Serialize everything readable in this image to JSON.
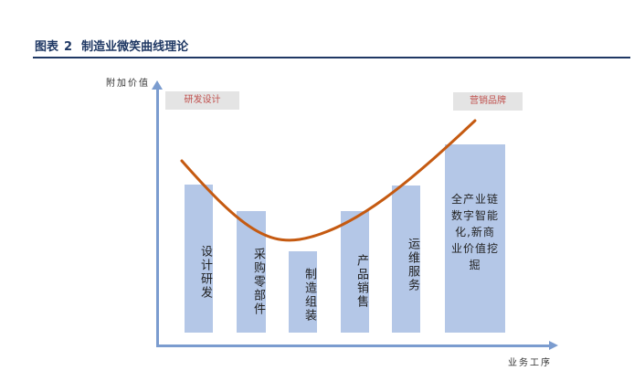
{
  "figure": {
    "label": "图表",
    "number": "2",
    "title": "制造业微笑曲线理论"
  },
  "axes": {
    "y_label": "附加价值",
    "x_label": "业务工序"
  },
  "tags": {
    "left": "研发设计",
    "right": "营销品牌"
  },
  "bars": [
    {
      "label": "设计研发",
      "value": 0.64
    },
    {
      "label": "采购零部件",
      "value": 0.52
    },
    {
      "label": "制造组装",
      "value": 0.34
    },
    {
      "label": "产品销售",
      "value": 0.51
    },
    {
      "label": "运维服务",
      "value": 0.64
    },
    {
      "label": "全产业链数字智能化,新商业价值挖掘",
      "value": 0.77
    }
  ],
  "colors": {
    "bar": "#b4c7e7",
    "axis": "#7b9ccf",
    "curve": "#c55a11",
    "tag_text": "#c0504d",
    "title": "#1f3864"
  }
}
